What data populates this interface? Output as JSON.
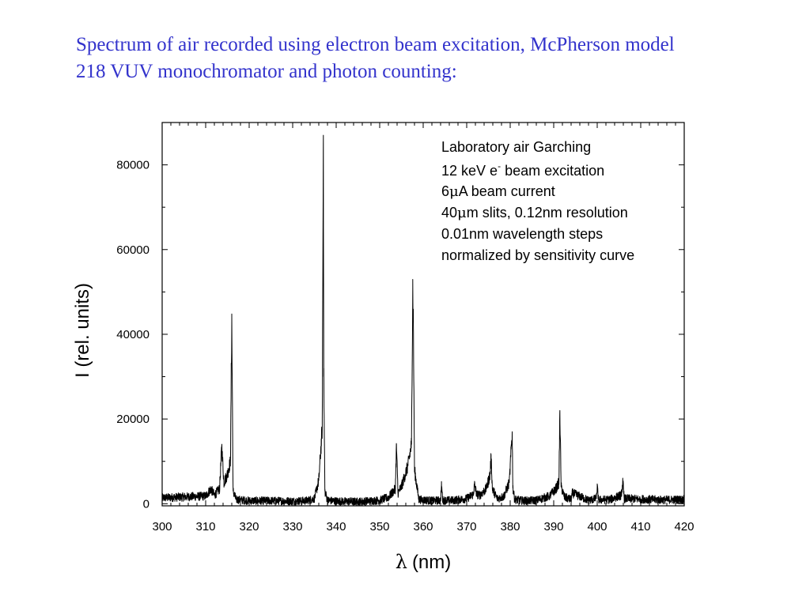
{
  "title_lines": [
    "Spectrum of air recorded using electron beam excitation, McPherson model",
    "218 VUV monochromator and photon counting:"
  ],
  "colors": {
    "title": "#3333cc",
    "trace": "#000000"
  },
  "chart_data": {
    "type": "line",
    "xlabel_symbol": "λ",
    "xlabel_unit": "(nm)",
    "ylabel": "I (rel. units)",
    "xlim": [
      300,
      420
    ],
    "ylim": [
      -500,
      90000
    ],
    "x_ticks": [
      300,
      310,
      320,
      330,
      340,
      350,
      360,
      370,
      380,
      390,
      400,
      410,
      420
    ],
    "y_ticks": [
      0,
      20000,
      40000,
      60000,
      80000
    ],
    "grid": false,
    "annotation": {
      "line1": "Laboratory air Garching",
      "line2_pre": "12 keV e",
      "line2_sup": "-",
      "line2_post": " beam excitation",
      "line3_pre": "6",
      "line3_mu": "μ",
      "line3_post": "A beam current",
      "line4_pre": "40",
      "line4_mu": "μ",
      "line4_post": "m slits, 0.12nm resolution",
      "line5": "0.01nm wavelength steps",
      "line6": "normalized by sensitivity curve"
    },
    "series": [
      {
        "x": [
          300,
          305,
          310,
          311.2,
          312,
          313.2,
          313.7,
          314.2,
          315.0,
          315.7,
          316.0,
          316.3,
          317,
          320,
          325,
          330,
          333,
          335,
          336.0,
          336.8,
          337.05,
          337.15,
          337.4,
          338,
          340,
          345,
          350,
          352,
          353.6,
          353.85,
          354.2,
          355,
          356.5,
          357.3,
          357.6,
          357.75,
          358.0,
          359,
          362,
          364.0,
          364.2,
          364.5,
          367,
          370,
          371.5,
          371.8,
          372.3,
          373,
          374.5,
          375.4,
          375.6,
          375.9,
          377,
          378.5,
          379.8,
          380.45,
          380.6,
          381.0,
          383,
          386,
          389,
          390.5,
          391.2,
          391.42,
          391.7,
          392.5,
          394,
          394.3,
          398,
          399.8,
          400.0,
          400.3,
          403,
          405.5,
          405.9,
          406.2,
          410,
          415,
          420
        ],
        "y": [
          1400,
          1600,
          1800,
          3500,
          2000,
          3500,
          13500,
          5000,
          7000,
          10000,
          43500,
          3000,
          1000,
          700,
          700,
          600,
          700,
          1200,
          5500,
          18000,
          87000,
          30000,
          3000,
          800,
          600,
          500,
          800,
          1500,
          3500,
          14000,
          2500,
          4000,
          9000,
          14000,
          51000,
          42000,
          8000,
          1000,
          700,
          800,
          4500,
          800,
          800,
          1200,
          2200,
          4500,
          2200,
          2000,
          3500,
          7000,
          11500,
          3500,
          1200,
          1700,
          5000,
          17000,
          4000,
          1000,
          700,
          800,
          1800,
          3500,
          5000,
          22000,
          4000,
          1500,
          1000,
          2500,
          800,
          1200,
          4000,
          900,
          1000,
          2000,
          5000,
          1200,
          1100,
          900,
          1000
        ]
      }
    ]
  }
}
